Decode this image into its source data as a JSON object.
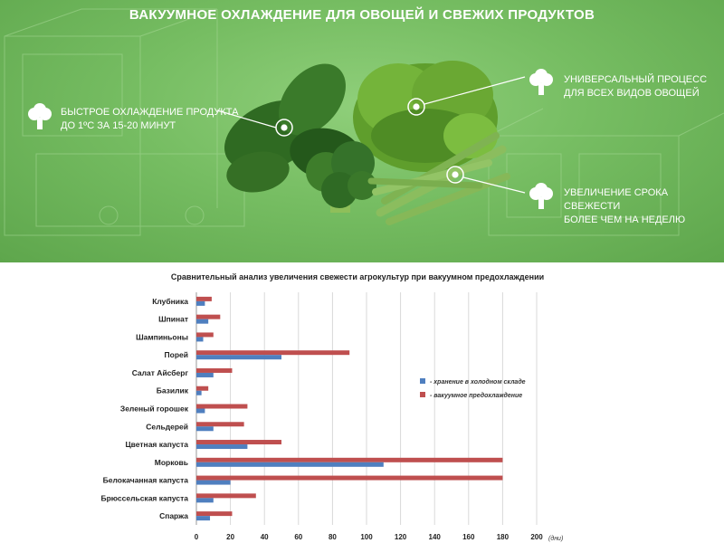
{
  "hero": {
    "title": "ВАКУУМНОЕ ОХЛАЖДЕНИЕ ДЛЯ ОВОЩЕЙ И СВЕЖИХ ПРОДУКТОВ",
    "features": [
      {
        "lines": [
          "БЫСТРОЕ ОХЛАЖДЕНИЕ ПРОДУКТА",
          "ДО 1ºС ЗА 15-20 МИНУТ"
        ],
        "icon": "broccoli-icon"
      },
      {
        "lines": [
          "УНИВЕРСАЛЬНЫЙ ПРОЦЕСС",
          "ДЛЯ ВСЕХ ВИДОВ ОВОЩЕЙ"
        ],
        "icon": "broccoli-icon"
      },
      {
        "lines": [
          "УВЕЛИЧЕНИЕ СРОКА СВЕЖЕСТИ",
          "БОЛЕЕ ЧЕМ НА НЕДЕЛЮ"
        ],
        "icon": "broccoli-icon"
      }
    ]
  },
  "chart_data": {
    "type": "bar",
    "orientation": "horizontal",
    "title": "Сравнительный анализ увеличения свежести агрокультур при вакуумном предохлаждении",
    "categories": [
      "Клубника",
      "Шпинат",
      "Шампиньоны",
      "Порей",
      "Салат Айсберг",
      "Базилик",
      "Зеленый горошек",
      "Сельдерей",
      "Цветная капуста",
      "Морковь",
      "Белокачанная капуста",
      "Брюссельская капуста",
      "Спаржа"
    ],
    "series": [
      {
        "name": "- хранение в холодном складе",
        "color": "#4f7fbf",
        "values": [
          5,
          7,
          4,
          50,
          10,
          3,
          5,
          10,
          30,
          110,
          20,
          10,
          8
        ]
      },
      {
        "name": "- вакуумное предохлаждение",
        "color": "#bf4f4f",
        "values": [
          9,
          14,
          10,
          90,
          21,
          7,
          30,
          28,
          50,
          180,
          180,
          35,
          21
        ]
      }
    ],
    "xlim": [
      0,
      200
    ],
    "xticks": [
      0,
      20,
      40,
      60,
      80,
      100,
      120,
      140,
      160,
      180,
      200
    ],
    "xunit": "(дни)",
    "grid": true,
    "legend": "right"
  }
}
